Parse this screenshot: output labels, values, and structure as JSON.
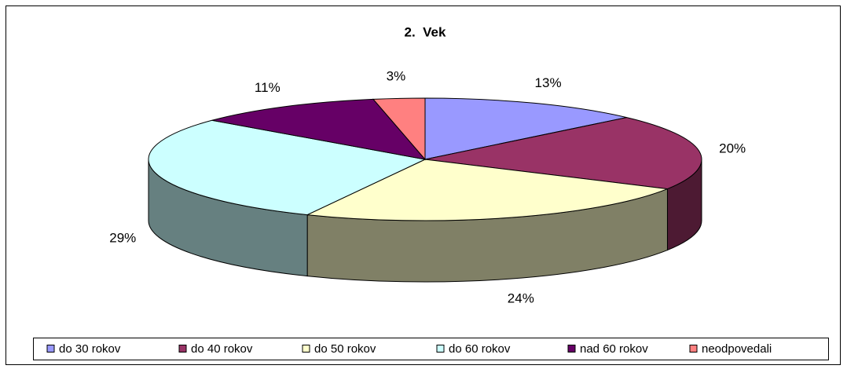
{
  "chart_data": {
    "type": "pie",
    "title": "2.  Vek",
    "categories": [
      "do 30 rokov",
      "do 40 rokov",
      "do 50 rokov",
      "do 60 rokov",
      "nad 60 rokov",
      "neodpovedali"
    ],
    "values": [
      13,
      20,
      24,
      29,
      11,
      3
    ],
    "value_labels": [
      "13%",
      "20%",
      "24%",
      "29%",
      "11%",
      "3%"
    ],
    "colors": [
      "#9999ff",
      "#993366",
      "#ffffcc",
      "#ccffff",
      "#660066",
      "#ff8080"
    ],
    "legend": "bottom"
  }
}
